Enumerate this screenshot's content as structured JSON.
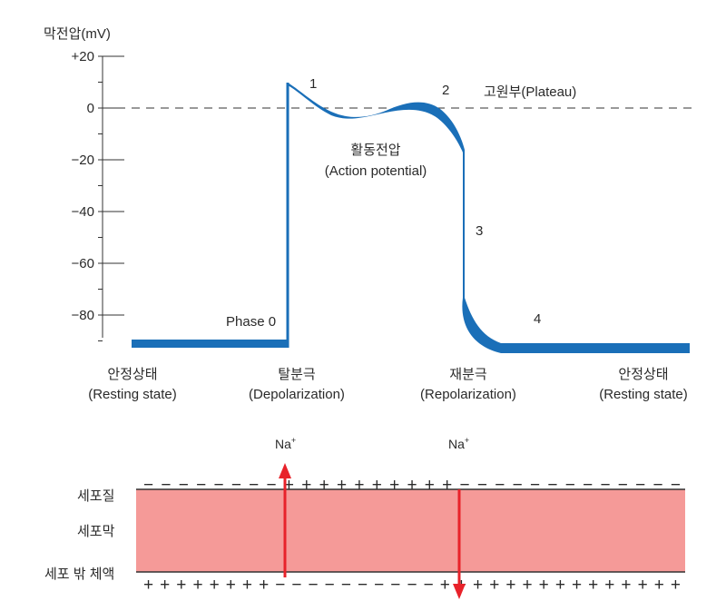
{
  "chart_data": {
    "type": "line",
    "ylabel": "막전압(mV)",
    "ylim": [
      -92,
      20
    ],
    "yticks": [
      {
        "value": 20,
        "label": "+20"
      },
      {
        "value": 0,
        "label": "0"
      },
      {
        "value": -20,
        "label": "−20"
      },
      {
        "value": -40,
        "label": "−40"
      },
      {
        "value": -60,
        "label": "−60"
      },
      {
        "value": -80,
        "label": "−80"
      }
    ],
    "series": [
      {
        "points": [
          {
            "t": 0,
            "v": -90
          },
          {
            "t": 23,
            "v": -90
          },
          {
            "t": 23.5,
            "v": 10
          },
          {
            "t": 27,
            "v": 2
          },
          {
            "t": 32,
            "v": -3
          },
          {
            "t": 38,
            "v": -1
          },
          {
            "t": 45,
            "v": -3
          },
          {
            "t": 50,
            "v": -17
          },
          {
            "t": 50.5,
            "v": -75
          },
          {
            "t": 54,
            "v": -85
          },
          {
            "t": 60,
            "v": -90
          },
          {
            "t": 80,
            "v": -90
          }
        ]
      }
    ],
    "color": "#1a6fb8",
    "phase_labels": [
      {
        "label": "Phase 0"
      },
      {
        "label": "1"
      },
      {
        "label": "2"
      },
      {
        "label": "3"
      },
      {
        "label": "4"
      }
    ],
    "annotations": {
      "plateau": "고원부(Plateau)",
      "action_potential": [
        "활동전압",
        "(Action potential)"
      ]
    },
    "state_labels": [
      {
        "ko": "안정상태",
        "en": "(Resting state)"
      },
      {
        "ko": "탈분극",
        "en": "(Depolarization)"
      },
      {
        "ko": "재분극",
        "en": "(Repolarization)"
      },
      {
        "ko": "안정상태",
        "en": "(Resting state)"
      }
    ]
  },
  "membrane": {
    "labels": {
      "cytoplasm": "세포질",
      "membrane": "세포막",
      "extracellular": "세포 밖 체액"
    },
    "ion_in": {
      "label": "Na",
      "charge": "+"
    },
    "ion_out": {
      "label": "Na",
      "charge": "+"
    },
    "top_charges": "− − − − − − − − + + + + + + + + + + − − − − − − − − − − − − −",
    "bottom_charges": "+ + + + + + + + − − − − − − − − − − + + + + + + + + + + + + + + +",
    "membrane_color": "#f59a98",
    "arrow_color": "#e8222a"
  }
}
